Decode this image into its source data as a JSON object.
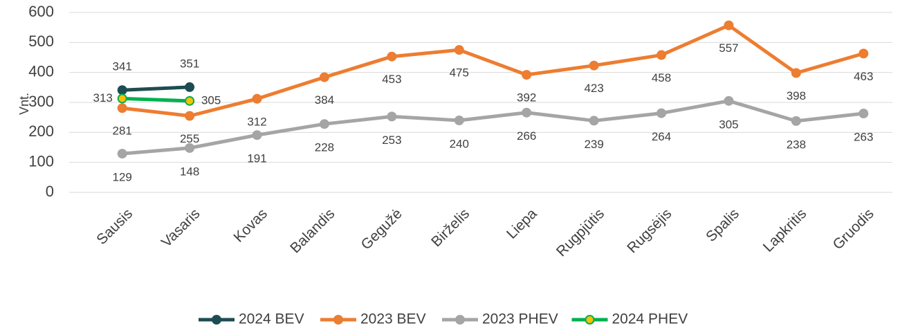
{
  "chart_data": {
    "type": "line",
    "y_label": "Vnt.",
    "categories": [
      "Sausis",
      "Vasaris",
      "Kovas",
      "Balandis",
      "Gegužė",
      "Birželis",
      "Liepa",
      "Rugpjūtis",
      "Rugsėjis",
      "Spalis",
      "Lapkritis",
      "Gruodis"
    ],
    "series": [
      {
        "name": "2024 BEV",
        "color": "#1d4d52",
        "values": [
          341,
          351,
          null,
          null,
          null,
          null,
          null,
          null,
          null,
          null,
          null,
          null
        ]
      },
      {
        "name": "2023 BEV",
        "color": "#ed7d31",
        "values": [
          281,
          255,
          312,
          384,
          453,
          475,
          392,
          423,
          458,
          557,
          398,
          463
        ]
      },
      {
        "name": "2023 PHEV",
        "color": "#a5a5a5",
        "values": [
          129,
          148,
          191,
          228,
          253,
          240,
          266,
          239,
          264,
          305,
          238,
          263
        ]
      },
      {
        "name": "2024 PHEV",
        "color": "#00b050",
        "marker_color": "#ffc000",
        "values": [
          313,
          305,
          null,
          null,
          null,
          null,
          null,
          null,
          null,
          null,
          null,
          null
        ]
      }
    ],
    "ylim": [
      0,
      600
    ],
    "yticks": [
      0,
      100,
      200,
      300,
      400,
      500,
      600
    ],
    "grid": true,
    "legend": "bottom"
  }
}
